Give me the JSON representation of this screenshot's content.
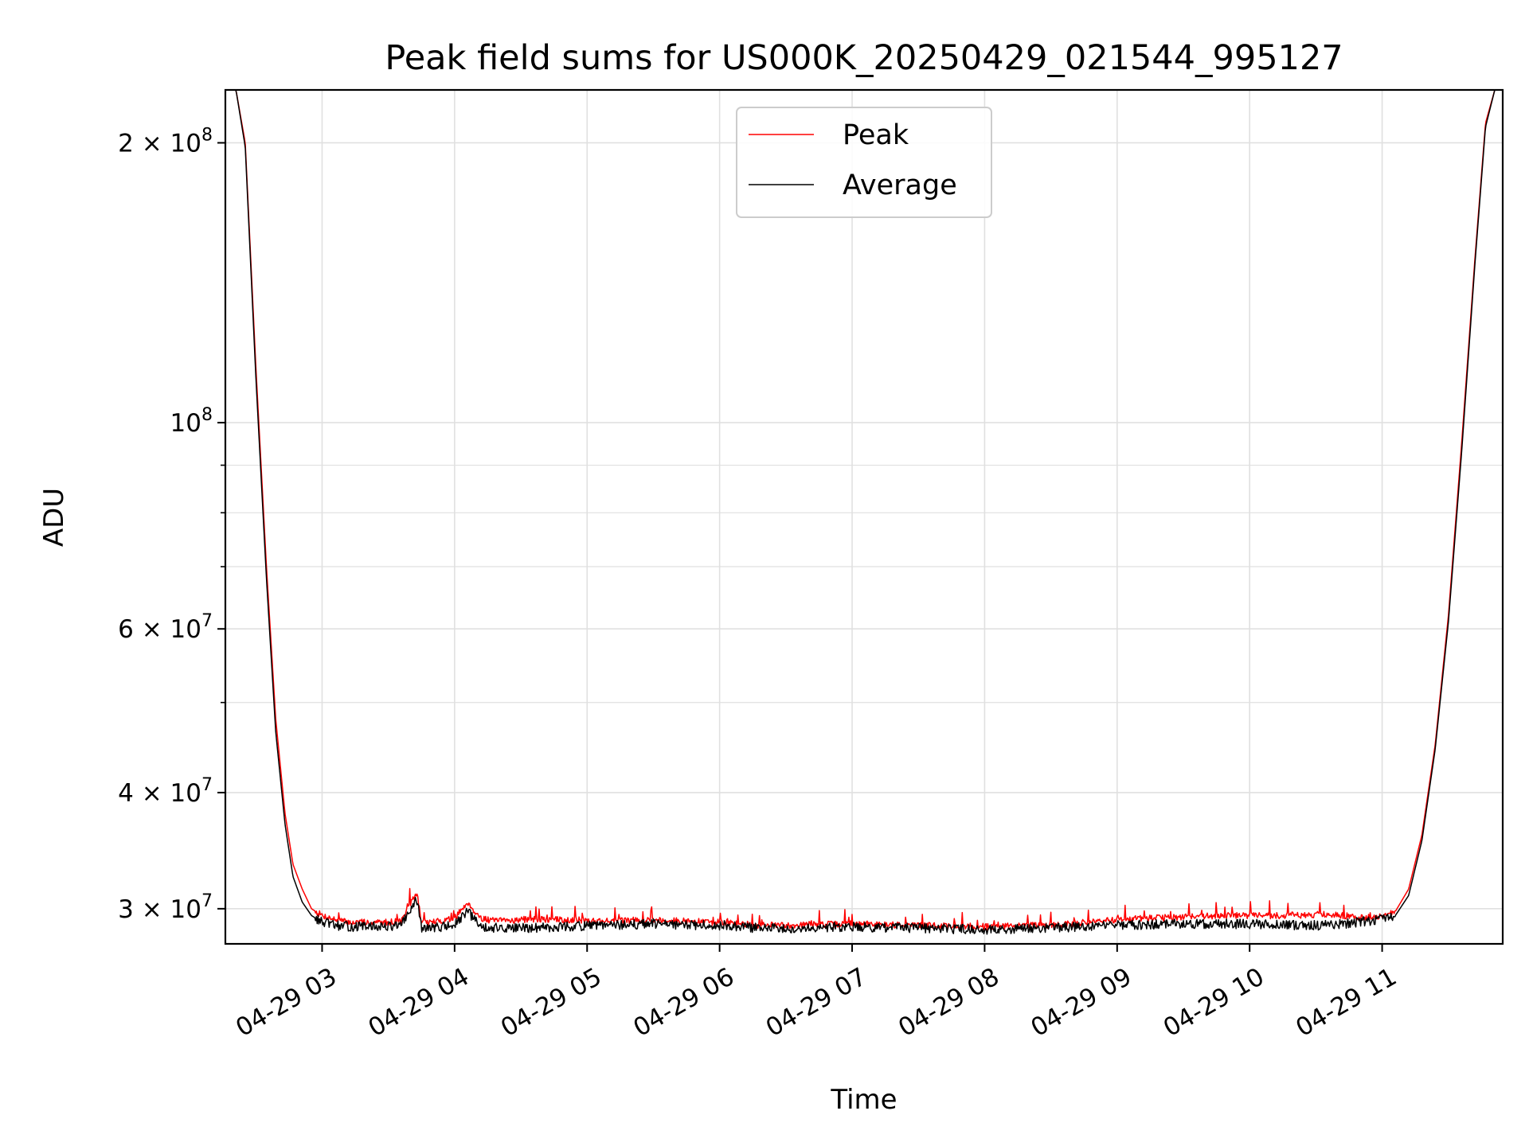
{
  "chart_data": {
    "type": "line",
    "title": "Peak field sums for US000K_20250429_021544_995127",
    "xlabel": "Time",
    "ylabel": "ADU",
    "yscale": "log",
    "ylim": [
      27500000,
      228000000
    ],
    "xlim_hours": [
      2.27,
      11.91
    ],
    "grid": true,
    "legend_position": "top-center",
    "colors": {
      "peak": "#ff0000",
      "average": "#000000",
      "grid": "#e0e0e0"
    },
    "x_ticks": [
      {
        "value": 3,
        "label": "04-29 03"
      },
      {
        "value": 4,
        "label": "04-29 04"
      },
      {
        "value": 5,
        "label": "04-29 05"
      },
      {
        "value": 6,
        "label": "04-29 06"
      },
      {
        "value": 7,
        "label": "04-29 07"
      },
      {
        "value": 8,
        "label": "04-29 08"
      },
      {
        "value": 9,
        "label": "04-29 09"
      },
      {
        "value": 10,
        "label": "04-29 10"
      },
      {
        "value": 11,
        "label": "04-29 11"
      }
    ],
    "y_major_ticks": [
      {
        "value": 100000000,
        "base": "10",
        "exp": "8",
        "mant": ""
      },
      {
        "value": 200000000,
        "base": "10",
        "exp": "8",
        "mant": "2"
      },
      {
        "value": 60000000,
        "base": "10",
        "exp": "7",
        "mant": "6"
      },
      {
        "value": 40000000,
        "base": "10",
        "exp": "7",
        "mant": "4"
      },
      {
        "value": 30000000,
        "base": "10",
        "exp": "7",
        "mant": "3"
      }
    ],
    "y_minor_ticks": [
      50000000,
      70000000,
      80000000,
      90000000
    ],
    "series": [
      {
        "name": "Peak",
        "x_hours": [
          2.27,
          2.35,
          2.42,
          2.5,
          2.58,
          2.65,
          2.72,
          2.78,
          2.85,
          2.92,
          3.0,
          3.1,
          3.2,
          3.3,
          3.45,
          3.6,
          3.7,
          3.72,
          3.75,
          3.8,
          3.9,
          4.0,
          4.1,
          4.15,
          4.2,
          4.3,
          4.5,
          4.8,
          5.2,
          5.5,
          5.7,
          6.0,
          6.3,
          6.5,
          7.0,
          7.5,
          8.0,
          8.5,
          9.0,
          9.5,
          9.8,
          10.0,
          10.3,
          10.6,
          10.8,
          11.0,
          11.1,
          11.2,
          11.3,
          11.4,
          11.5,
          11.6,
          11.7,
          11.78,
          11.85,
          11.91
        ],
        "values": [
          228000000,
          228000000,
          200000000,
          115000000,
          70000000,
          48000000,
          38000000,
          33500000,
          31500000,
          30000000,
          29500000,
          29200000,
          29000000,
          29000000,
          29000000,
          29100000,
          31000000,
          31000000,
          29000000,
          29000000,
          29100000,
          29300000,
          30500000,
          29800000,
          29300000,
          29100000,
          29200000,
          29200000,
          29100000,
          29200000,
          29100000,
          29000000,
          28800000,
          28800000,
          28900000,
          28800000,
          28700000,
          28800000,
          29200000,
          29400000,
          29500000,
          29500000,
          29500000,
          29600000,
          29400000,
          29400000,
          29800000,
          31500000,
          36000000,
          45000000,
          62000000,
          95000000,
          150000000,
          210000000,
          228000000,
          228000000
        ]
      },
      {
        "name": "Average",
        "x_hours": [
          2.27,
          2.35,
          2.42,
          2.5,
          2.58,
          2.65,
          2.72,
          2.78,
          2.85,
          2.92,
          3.0,
          3.1,
          3.2,
          3.3,
          3.45,
          3.6,
          3.7,
          3.72,
          3.75,
          3.8,
          3.9,
          4.0,
          4.1,
          4.15,
          4.2,
          4.3,
          4.5,
          4.8,
          5.2,
          5.5,
          5.7,
          6.0,
          6.3,
          6.5,
          7.0,
          7.5,
          8.0,
          8.5,
          9.0,
          9.5,
          9.8,
          10.0,
          10.3,
          10.6,
          10.8,
          11.0,
          11.1,
          11.2,
          11.3,
          11.4,
          11.5,
          11.6,
          11.7,
          11.78,
          11.85,
          11.91
        ],
        "values": [
          228000000,
          228000000,
          198000000,
          112000000,
          68000000,
          46500000,
          37000000,
          32500000,
          30500000,
          29500000,
          29000000,
          28800000,
          28700000,
          28700000,
          28700000,
          28800000,
          30500000,
          30500000,
          28600000,
          28600000,
          28700000,
          28800000,
          29800000,
          29200000,
          28700000,
          28600000,
          28600000,
          28700000,
          28800000,
          28900000,
          28800000,
          28800000,
          28600000,
          28600000,
          28700000,
          28600000,
          28500000,
          28600000,
          28800000,
          28900000,
          28900000,
          28900000,
          28800000,
          28800000,
          29000000,
          29200000,
          29500000,
          31000000,
          35500000,
          44500000,
          61000000,
          93000000,
          148000000,
          208000000,
          228000000,
          228000000
        ]
      }
    ]
  }
}
